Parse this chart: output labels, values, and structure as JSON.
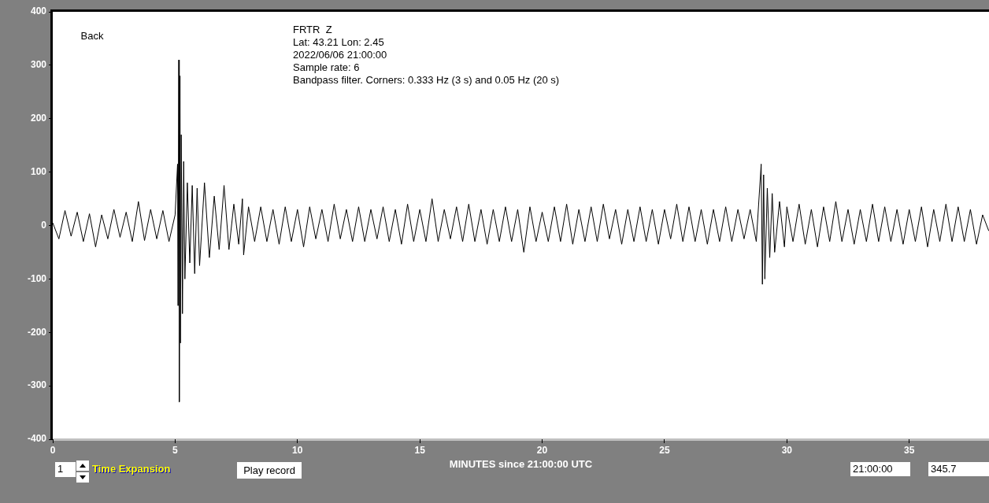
{
  "chart_data": {
    "type": "line",
    "title": "FRTR  Z",
    "xlabel": "MINUTES since 21:00:00 UTC",
    "annotations": [
      "Lat: 43.21 Lon: 2.45",
      "2022/06/06 21:00:00",
      "Sample rate: 6",
      "Bandpass filter. Corners: 0.333 Hz (3 s) and 0.05 Hz (20 s)",
      "Back",
      "1",
      "Time Expansion",
      "Play record",
      "21:00:00",
      "345.7"
    ],
    "xlim": [
      0,
      38.26
    ],
    "xticks": [
      0,
      5,
      10,
      15,
      20,
      25,
      30,
      35
    ],
    "ylim": [
      -400,
      400
    ],
    "yticks": [
      -400,
      -300,
      -200,
      -100,
      0,
      100,
      200,
      300,
      400
    ],
    "grid": false,
    "legend": false,
    "marker": "none",
    "line_style": "solid",
    "series": [
      {
        "color": "#000000",
        "x": [
          0,
          0.25,
          0.5,
          0.75,
          1,
          1.25,
          1.5,
          1.75,
          2,
          2.25,
          2.5,
          2.75,
          3,
          3.25,
          3.5,
          3.75,
          4,
          4.25,
          4.5,
          4.75,
          5,
          5.1,
          5.12,
          5.15,
          5.17,
          5.2,
          5.22,
          5.25,
          5.3,
          5.35,
          5.4,
          5.5,
          5.6,
          5.7,
          5.8,
          5.9,
          6,
          6.2,
          6.4,
          6.6,
          6.8,
          7,
          7.2,
          7.4,
          7.6,
          7.75,
          7.8,
          8,
          8.25,
          8.5,
          8.75,
          9,
          9.25,
          9.5,
          9.75,
          10,
          10.25,
          10.5,
          10.75,
          11,
          11.25,
          11.5,
          11.75,
          12,
          12.25,
          12.5,
          12.75,
          13,
          13.25,
          13.5,
          13.75,
          14,
          14.25,
          14.5,
          14.75,
          15,
          15.25,
          15.5,
          15.75,
          16,
          16.25,
          16.5,
          16.75,
          17,
          17.25,
          17.5,
          17.75,
          18,
          18.25,
          18.5,
          18.75,
          19,
          19.25,
          19.5,
          19.75,
          20,
          20.25,
          20.5,
          20.75,
          21,
          21.25,
          21.5,
          21.75,
          22,
          22.25,
          22.5,
          22.75,
          23,
          23.25,
          23.5,
          23.75,
          24,
          24.25,
          24.5,
          24.75,
          25,
          25.25,
          25.5,
          25.75,
          26,
          26.25,
          26.5,
          26.75,
          27,
          27.25,
          27.5,
          27.75,
          28,
          28.25,
          28.5,
          28.75,
          28.95,
          29,
          29.05,
          29.1,
          29.2,
          29.3,
          29.4,
          29.5,
          29.7,
          29.9,
          30,
          30.25,
          30.5,
          30.75,
          31,
          31.25,
          31.5,
          31.75,
          32,
          32.25,
          32.5,
          32.75,
          33,
          33.25,
          33.5,
          33.75,
          34,
          34.25,
          34.5,
          34.75,
          35,
          35.25,
          35.5,
          35.75,
          36,
          36.25,
          36.5,
          36.75,
          37,
          37.25,
          37.5,
          37.75,
          38,
          38.25
        ],
        "values": [
          5,
          -25,
          28,
          -20,
          25,
          -30,
          22,
          -40,
          20,
          -25,
          30,
          -22,
          25,
          -30,
          45,
          -28,
          30,
          -25,
          28,
          -30,
          20,
          115,
          -150,
          310,
          -330,
          280,
          -220,
          170,
          -165,
          120,
          -100,
          80,
          -70,
          75,
          -90,
          70,
          -75,
          80,
          -60,
          55,
          -45,
          75,
          -45,
          40,
          -35,
          50,
          -55,
          35,
          -30,
          35,
          -30,
          30,
          -35,
          35,
          -30,
          30,
          -40,
          35,
          -25,
          30,
          -30,
          40,
          -25,
          30,
          -30,
          35,
          -30,
          30,
          -25,
          35,
          -30,
          30,
          -35,
          40,
          -30,
          30,
          -30,
          50,
          -30,
          30,
          -25,
          35,
          -30,
          40,
          -30,
          30,
          -35,
          30,
          -30,
          35,
          -30,
          30,
          -50,
          35,
          -30,
          25,
          -30,
          35,
          -30,
          40,
          -35,
          30,
          -30,
          35,
          -30,
          40,
          -25,
          30,
          -35,
          30,
          -30,
          35,
          -30,
          30,
          -35,
          30,
          -25,
          40,
          -30,
          35,
          -30,
          30,
          -35,
          30,
          -30,
          35,
          -30,
          30,
          -25,
          30,
          -30,
          115,
          -110,
          95,
          -100,
          70,
          -60,
          60,
          -50,
          45,
          -40,
          35,
          -30,
          40,
          -35,
          30,
          -40,
          35,
          -30,
          45,
          -30,
          30,
          -35,
          30,
          -30,
          40,
          -30,
          35,
          -30,
          30,
          -35,
          30,
          -30,
          35,
          -40,
          30,
          -30,
          40,
          -30,
          35,
          -30,
          30,
          -35,
          20,
          -10
        ]
      }
    ]
  }
}
